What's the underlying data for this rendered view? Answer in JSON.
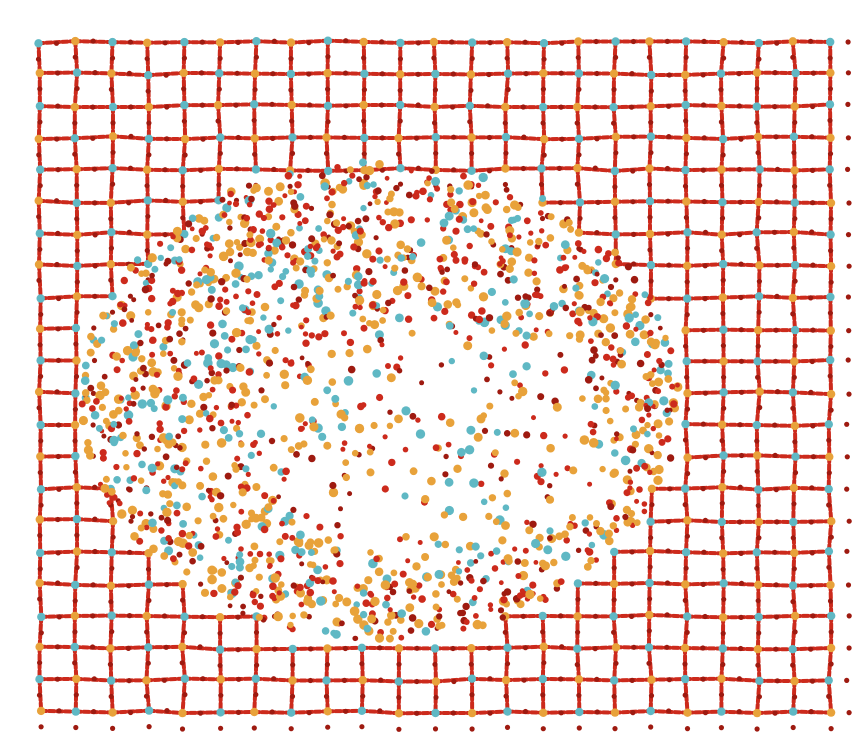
{
  "figure": {
    "colors": {
      "background": "#ffffff",
      "bond": "#cc2a1c",
      "bond_dark": "#9e1a10",
      "atom_gold": "#e8a23a",
      "atom_cyan": "#5fb8c4"
    },
    "lattice": {
      "rows": 22,
      "cols": 23
    }
  }
}
